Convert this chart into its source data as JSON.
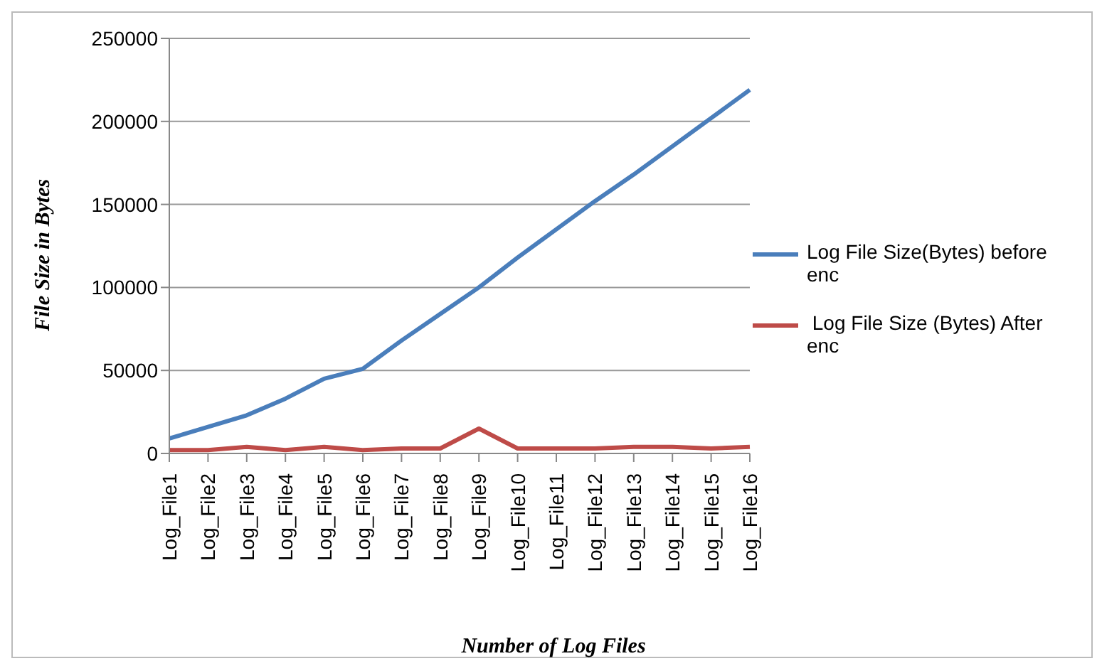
{
  "chart_data": {
    "type": "line",
    "xlabel": "Number of Log Files",
    "ylabel": "File Size in Bytes",
    "categories": [
      "Log_File1",
      "Log_File2",
      "Log_File3",
      "Log_File4",
      "Log_File5",
      "Log_File6",
      "Log_File7",
      "Log_File8",
      "Log_File9",
      "Log_File10",
      "Log_File11",
      "Log_File12",
      "Log_File13",
      "Log_File14",
      "Log_File15",
      "Log_File16"
    ],
    "series": [
      {
        "name": "Log File Size(Bytes) before enc",
        "color": "#4a7ebb",
        "values": [
          9000,
          16000,
          23000,
          33000,
          45000,
          51000,
          68000,
          84000,
          100000,
          118000,
          135000,
          152000,
          168000,
          185000,
          202000,
          219000
        ]
      },
      {
        "name": " Log File Size (Bytes) After enc",
        "color": "#be4b48",
        "values": [
          2000,
          2000,
          4000,
          2000,
          4000,
          2000,
          3000,
          3000,
          15000,
          3000,
          3000,
          3000,
          4000,
          4000,
          3000,
          4000
        ]
      }
    ],
    "ylim": [
      0,
      250000
    ],
    "yticks": [
      0,
      50000,
      100000,
      150000,
      200000,
      250000
    ],
    "grid": "y",
    "legend": "right",
    "marker": "none",
    "line_style": "solid"
  }
}
